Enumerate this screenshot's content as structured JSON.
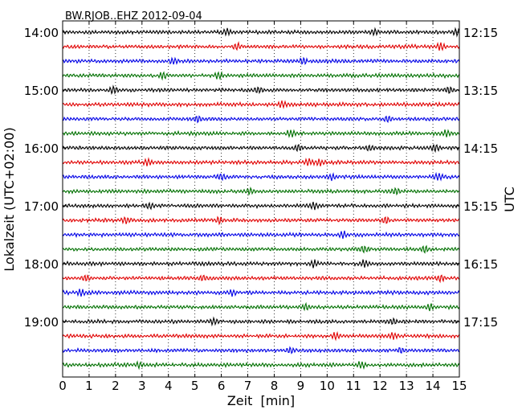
{
  "chart_data": {
    "type": "line",
    "title": "BW.RJOB..EHZ 2012-09-04",
    "xlabel": "Zeit  [min]",
    "ylabel_left": "Lokalzeit (UTC+02:00)",
    "ylabel_right": "UTC",
    "xlim": [
      0,
      15
    ],
    "x_ticks": [
      "0",
      "1",
      "2",
      "3",
      "4",
      "5",
      "6",
      "7",
      "8",
      "9",
      "10",
      "11",
      "12",
      "13",
      "14",
      "15"
    ],
    "left_hour_labels": [
      "14:00",
      "15:00",
      "16:00",
      "17:00",
      "18:00",
      "19:00"
    ],
    "right_hour_labels": [
      "12:15",
      "13:15",
      "14:15",
      "15:15",
      "16:15",
      "17:15"
    ],
    "grid": "vertical dotted at each minute",
    "line_count": 24,
    "line_interval_minutes": 15,
    "trace_colors": [
      "#000000",
      "#e00000",
      "#0000e6",
      "#007000"
    ],
    "burst_positions_min": [
      [
        6.2,
        11.8,
        14.9
      ],
      [
        6.6,
        14.3
      ],
      [
        4.2,
        9.1
      ],
      [
        3.8,
        5.9
      ],
      [
        1.9,
        7.4,
        14.6
      ],
      [
        8.3
      ],
      [
        5.1,
        12.3
      ],
      [
        8.6,
        14.5
      ],
      [
        8.9,
        11.6,
        14.1
      ],
      [
        3.2,
        9.3,
        9.7
      ],
      [
        6.0,
        10.2,
        14.2
      ],
      [
        7.1,
        12.6
      ],
      [
        3.3,
        9.5
      ],
      [
        2.4,
        5.9,
        12.2
      ],
      [
        10.6
      ],
      [
        11.4,
        13.7
      ],
      [
        9.5,
        11.4
      ],
      [
        0.9,
        5.3,
        14.3
      ],
      [
        0.7,
        6.4
      ],
      [
        9.2,
        13.9
      ],
      [
        5.7,
        12.5
      ],
      [
        10.3,
        12.5
      ],
      [
        8.6,
        12.8
      ],
      [
        2.9,
        11.3
      ]
    ]
  }
}
